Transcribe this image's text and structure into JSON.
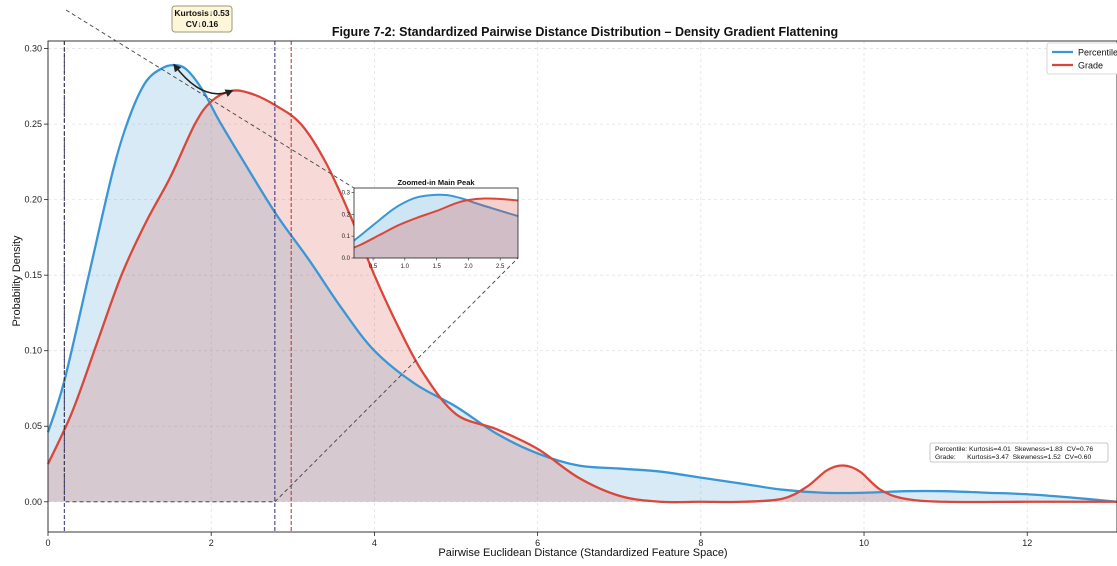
{
  "chart_data": {
    "type": "area",
    "title": "Figure 7-2: Standardized Pairwise Distance Distribution – Density Gradient Flattening",
    "xlabel": "Pairwise Euclidean Distance (Standardized Feature Space)",
    "ylabel": "Probability Density",
    "xlim": [
      0,
      13.1
    ],
    "ylim": [
      -0.02,
      0.305
    ],
    "x_ticks": [
      0,
      2,
      4,
      6,
      8,
      10,
      12
    ],
    "x_tick_labels": [
      "0",
      "2",
      "4",
      "6",
      "8",
      "10",
      "12"
    ],
    "y_ticks": [
      0.0,
      0.05,
      0.1,
      0.15,
      0.2,
      0.25,
      0.3
    ],
    "y_tick_labels": [
      "0.00",
      "0.05",
      "0.10",
      "0.15",
      "0.20",
      "0.25",
      "0.30"
    ],
    "grid": true,
    "legend_position": "top-right",
    "series": [
      {
        "name": "Percentile",
        "color": "#3a96d4",
        "x": [
          0,
          0.2,
          0.5,
          0.8,
          1.0,
          1.2,
          1.4,
          1.55,
          1.7,
          1.9,
          2.1,
          2.4,
          2.8,
          3.2,
          3.6,
          4.0,
          4.5,
          5.0,
          5.5,
          6.0,
          6.5,
          7.0,
          7.5,
          8.0,
          8.5,
          9.0,
          9.5,
          10.0,
          10.5,
          11.0,
          11.5,
          12.0,
          12.5,
          13.1
        ],
        "y": [
          0.046,
          0.08,
          0.15,
          0.22,
          0.255,
          0.278,
          0.287,
          0.289,
          0.286,
          0.272,
          0.252,
          0.225,
          0.19,
          0.16,
          0.128,
          0.1,
          0.078,
          0.063,
          0.045,
          0.032,
          0.024,
          0.022,
          0.02,
          0.016,
          0.012,
          0.008,
          0.006,
          0.006,
          0.007,
          0.007,
          0.006,
          0.005,
          0.003,
          0.0
        ]
      },
      {
        "name": "Grade",
        "color": "#d9473a",
        "x": [
          0,
          0.3,
          0.6,
          0.9,
          1.2,
          1.5,
          1.8,
          2.0,
          2.25,
          2.5,
          2.8,
          3.1,
          3.4,
          3.7,
          4.0,
          4.3,
          4.6,
          5.0,
          5.5,
          6.0,
          6.5,
          7.0,
          7.5,
          8.0,
          8.5,
          9.0,
          9.3,
          9.55,
          9.75,
          9.95,
          10.2,
          10.5,
          11.0,
          12.0,
          13.1
        ],
        "y": [
          0.025,
          0.06,
          0.105,
          0.15,
          0.185,
          0.215,
          0.25,
          0.265,
          0.272,
          0.27,
          0.262,
          0.25,
          0.225,
          0.19,
          0.15,
          0.115,
          0.085,
          0.058,
          0.048,
          0.035,
          0.016,
          0.004,
          0.0,
          0.0,
          0.0,
          0.002,
          0.01,
          0.021,
          0.024,
          0.02,
          0.008,
          0.002,
          0.0,
          0.0,
          0.0
        ]
      }
    ],
    "vertical_lines": [
      {
        "x": 0.2,
        "color": "#2e2e7a",
        "style": "dashed"
      },
      {
        "x": 2.78,
        "color": "#2e2e7a",
        "style": "dashed"
      },
      {
        "x": 2.98,
        "color": "#b03030",
        "style": "dashed"
      }
    ],
    "annotation_box": {
      "lines": [
        "Kurtosis↓0.53",
        "CV↓0.16"
      ],
      "arrow_from": [
        1.55,
        0.289
      ],
      "arrow_to": [
        2.25,
        0.272
      ]
    },
    "stats_box": {
      "lines": [
        "Percentile: Kurtosis=4.01  Skewness=1.83  CV=0.76",
        "Grade:      Kurtosis=3.47  Skewness=1.52  CV=0.60"
      ]
    },
    "inset": {
      "title": "Zoomed-in Main Peak",
      "xlim": [
        0.2,
        2.78
      ],
      "ylim": [
        0,
        0.32
      ],
      "x_ticks": [
        0.5,
        1.0,
        1.5,
        2.0,
        2.5
      ],
      "x_tick_labels": [
        "0.5",
        "1.0",
        "1.5",
        "2.0",
        "2.5"
      ],
      "y_ticks": [
        0.0,
        0.1,
        0.2,
        0.3
      ],
      "y_tick_labels": [
        "0.0",
        "0.1",
        "0.2",
        "0.3"
      ]
    }
  }
}
